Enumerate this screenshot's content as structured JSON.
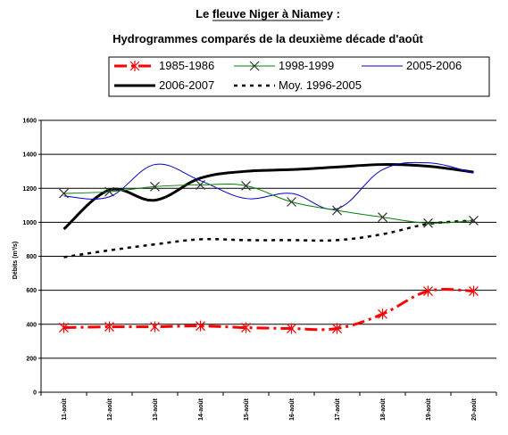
{
  "chart_data": {
    "type": "line",
    "title": "Le fleuve Niger à Niamey :",
    "subtitle": "Hydrogrammes comparés de la deuxième décade d'août",
    "ylabel": "Débits (m³/s)",
    "xlabel": "",
    "ylim": [
      0,
      1600
    ],
    "yticks": [
      0,
      200,
      400,
      600,
      800,
      1000,
      1200,
      1400,
      1600
    ],
    "grid": "horizontal",
    "legend_position": "top",
    "categories": [
      "11-août",
      "12-août",
      "13-août",
      "14-août",
      "15-août",
      "16-août",
      "17-août",
      "18-août",
      "19-août",
      "20-août"
    ],
    "series": [
      {
        "name": "1985-1986",
        "color": "#ff0000",
        "style": "dash-dot",
        "marker": "star",
        "values": [
          380,
          385,
          385,
          390,
          380,
          375,
          375,
          460,
          595,
          595
        ]
      },
      {
        "name": "1998-1999",
        "color": "#008000",
        "style": "solid-thin",
        "marker": "x",
        "values": [
          1170,
          1180,
          1210,
          1220,
          1215,
          1120,
          1070,
          1030,
          995,
          1010
        ]
      },
      {
        "name": "2005-2006",
        "color": "#0000cc",
        "style": "solid-thin",
        "marker": "none",
        "values": [
          1155,
          1150,
          1340,
          1245,
          1140,
          1170,
          1080,
          1310,
          1350,
          1290
        ]
      },
      {
        "name": "2006-2007",
        "color": "#000000",
        "style": "solid-thick",
        "marker": "none",
        "values": [
          960,
          1190,
          1130,
          1260,
          1300,
          1310,
          1325,
          1340,
          1330,
          1295
        ]
      },
      {
        "name": "Moy. 1996-2005",
        "color": "#000000",
        "style": "dotted",
        "marker": "none",
        "values": [
          795,
          835,
          870,
          900,
          895,
          895,
          895,
          930,
          990,
          1010
        ]
      }
    ]
  }
}
